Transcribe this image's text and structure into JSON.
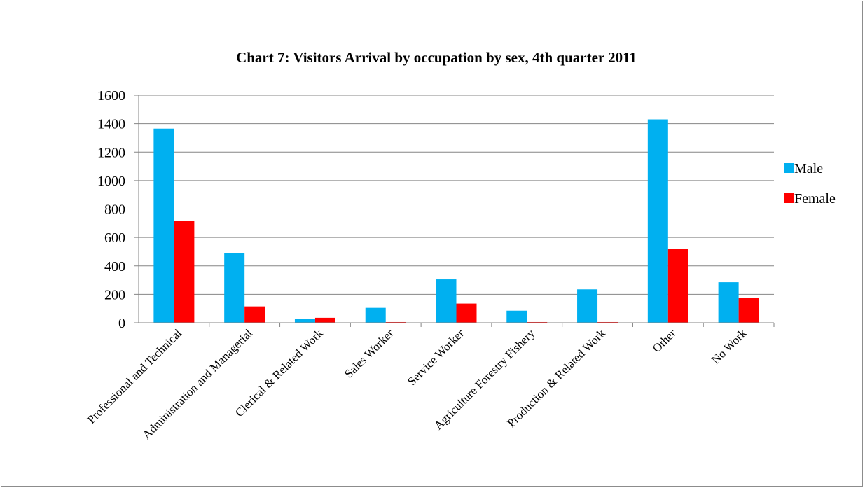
{
  "chart_data": {
    "type": "bar",
    "title": "Chart 7: Visitors Arrival by occupation by sex, 4th quarter 2011",
    "xlabel": "",
    "ylabel": "",
    "ylim": [
      0,
      1600
    ],
    "yticks": [
      0,
      200,
      400,
      600,
      800,
      1000,
      1200,
      1400,
      1600
    ],
    "grid": true,
    "legend_position": "right",
    "categories": [
      "Professional and Technical",
      "Administration and Managerial",
      "Clerical & Related Work",
      "Sales Worker",
      "Service Worker",
      "Agriculture Forestry Fishery",
      "Production & Related Work",
      "Other",
      "No Work"
    ],
    "series": [
      {
        "name": "Male",
        "color": "#00b0f0",
        "values": [
          1365,
          490,
          25,
          105,
          305,
          85,
          235,
          1430,
          285
        ]
      },
      {
        "name": "Female",
        "color": "#ff0000",
        "values": [
          715,
          115,
          35,
          5,
          135,
          5,
          5,
          520,
          175
        ]
      }
    ]
  }
}
